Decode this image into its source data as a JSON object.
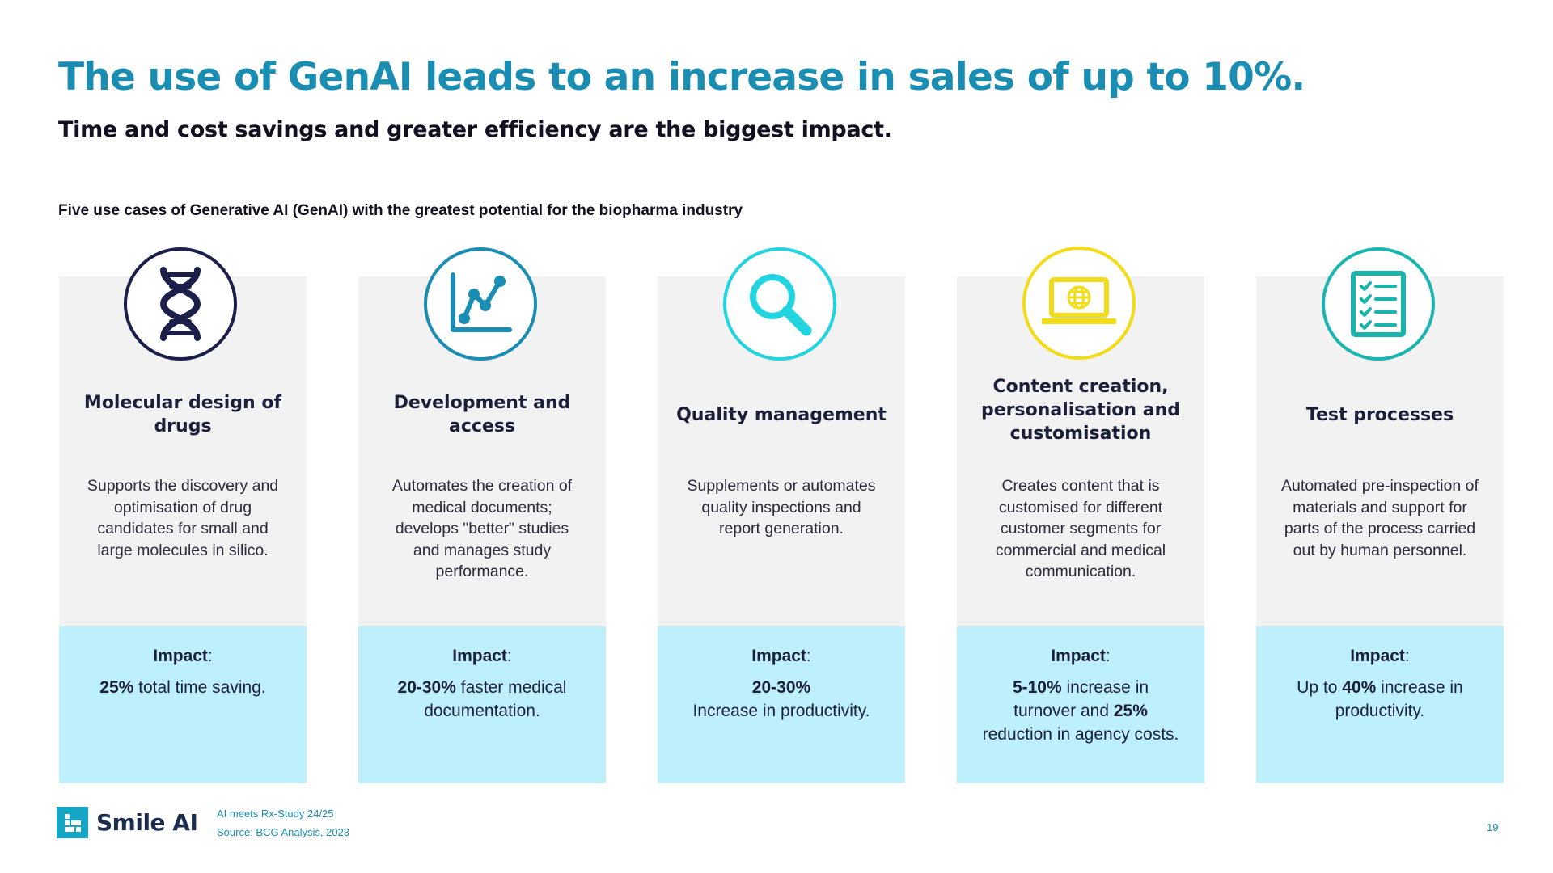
{
  "header": {
    "title": "The use of GenAI leads to an increase in sales of up to 10%.",
    "subtitle": "Time and cost savings and greater efficiency are the biggest impact.",
    "section_caption": "Five use cases of Generative AI (GenAI) with the greatest potential for the biopharma industry"
  },
  "colors": {
    "title_blue": "#1a8db2",
    "card_grey": "#f2f2f2",
    "impact_blue": "#bdeffc",
    "icon_navy": "#1c1f4a",
    "icon_teal": "#1a8db2",
    "icon_cyan": "#22d3e0",
    "icon_yellow": "#f2dc1a",
    "icon_turquoise": "#1ab5ae"
  },
  "impact_label": "Impact",
  "impact_colon": ":",
  "cards": [
    {
      "icon": "dna-icon",
      "title": "Molecular design of drugs",
      "description": "Supports the discovery and optimisation of drug candidates for small and large molecules in silico.",
      "impact": [
        {
          "text": "25%",
          "bold": true
        },
        {
          "text": " total time saving.",
          "bold": false
        }
      ]
    },
    {
      "icon": "chart-icon",
      "title": "Development and access",
      "description": "Automates the creation of medical documents; develops \"better\" studies and manages study performance.",
      "impact": [
        {
          "text": "20-30%",
          "bold": true
        },
        {
          "text": " faster medical documentation.",
          "bold": false
        }
      ]
    },
    {
      "icon": "magnifier-icon",
      "title": "Quality management",
      "description": "Supplements or automates quality inspections and report generation.",
      "impact_lines": [
        {
          "text": "20-30%",
          "bold": true
        },
        {
          "text": "Increase in productivity.",
          "bold": false
        }
      ]
    },
    {
      "icon": "laptop-globe-icon",
      "title": "Content creation, personalisation and customisation",
      "description": "Creates content that is customised for different customer segments for commercial and medical communication.",
      "impact": [
        {
          "text": "5-10%",
          "bold": true
        },
        {
          "text": " increase in turnover and ",
          "bold": false
        },
        {
          "text": "25%",
          "bold": true
        },
        {
          "text": " reduction in agency costs.",
          "bold": false
        }
      ]
    },
    {
      "icon": "checklist-icon",
      "title": "Test processes",
      "description": "Automated pre-inspection of materials and support for parts of the process carried out by human personnel.",
      "impact": [
        {
          "text": "Up to ",
          "bold": false
        },
        {
          "text": "40%",
          "bold": true
        },
        {
          "text": " increase in productivity.",
          "bold": false
        }
      ]
    }
  ],
  "footer": {
    "logo_text": "Smile AI",
    "study": "AI meets Rx-Study 24/25",
    "source": "Source: BCG Analysis, 2023",
    "page_number": "19"
  }
}
